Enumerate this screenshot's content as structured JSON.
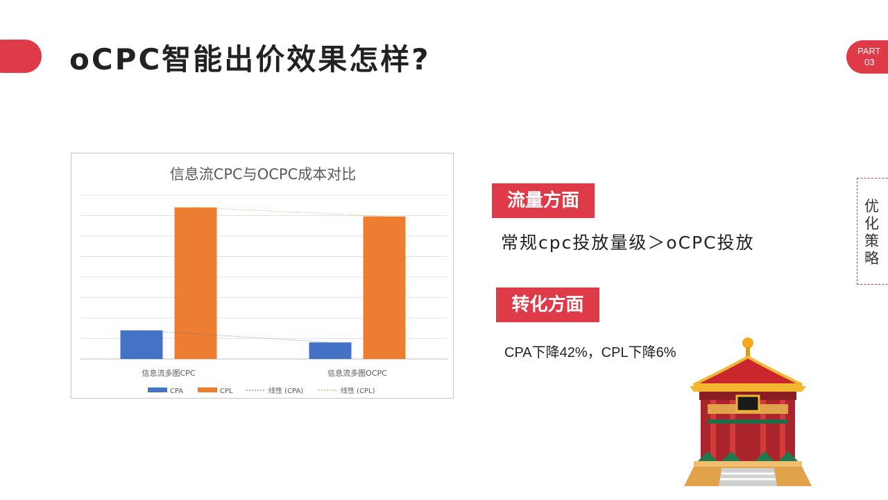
{
  "header": {
    "title": "oCPC智能出价效果怎样?"
  },
  "part_badge": {
    "label": "PART",
    "number": "03"
  },
  "sections": [
    {
      "tag": "流量方面",
      "text": "常规cpc投放量级＞oCPC投放"
    },
    {
      "tag": "转化方面",
      "text": "CPA下降42%，CPL下降6%"
    }
  ],
  "side_tab": {
    "label": "优化策略"
  },
  "colors": {
    "accent": "#de3a48",
    "cpa": "#4472c4",
    "cpl": "#ed7d31"
  },
  "icons": {
    "pavilion": "chinese-pavilion-icon"
  },
  "chart_data": {
    "type": "bar",
    "title": "信息流CPC与OCPC成本对比",
    "categories": [
      "信息流多图CPC",
      "信息流多图OCPC"
    ],
    "series": [
      {
        "name": "CPA",
        "values": [
          14,
          8.1
        ]
      },
      {
        "name": "CPL",
        "values": [
          74,
          69.6
        ]
      }
    ],
    "trendlines": [
      {
        "name": "线性 (CPA)",
        "of": "CPA"
      },
      {
        "name": "线性 (CPL)",
        "of": "CPL"
      }
    ],
    "ylim": [
      0,
      80
    ],
    "grid": true,
    "legend": "bottom"
  }
}
